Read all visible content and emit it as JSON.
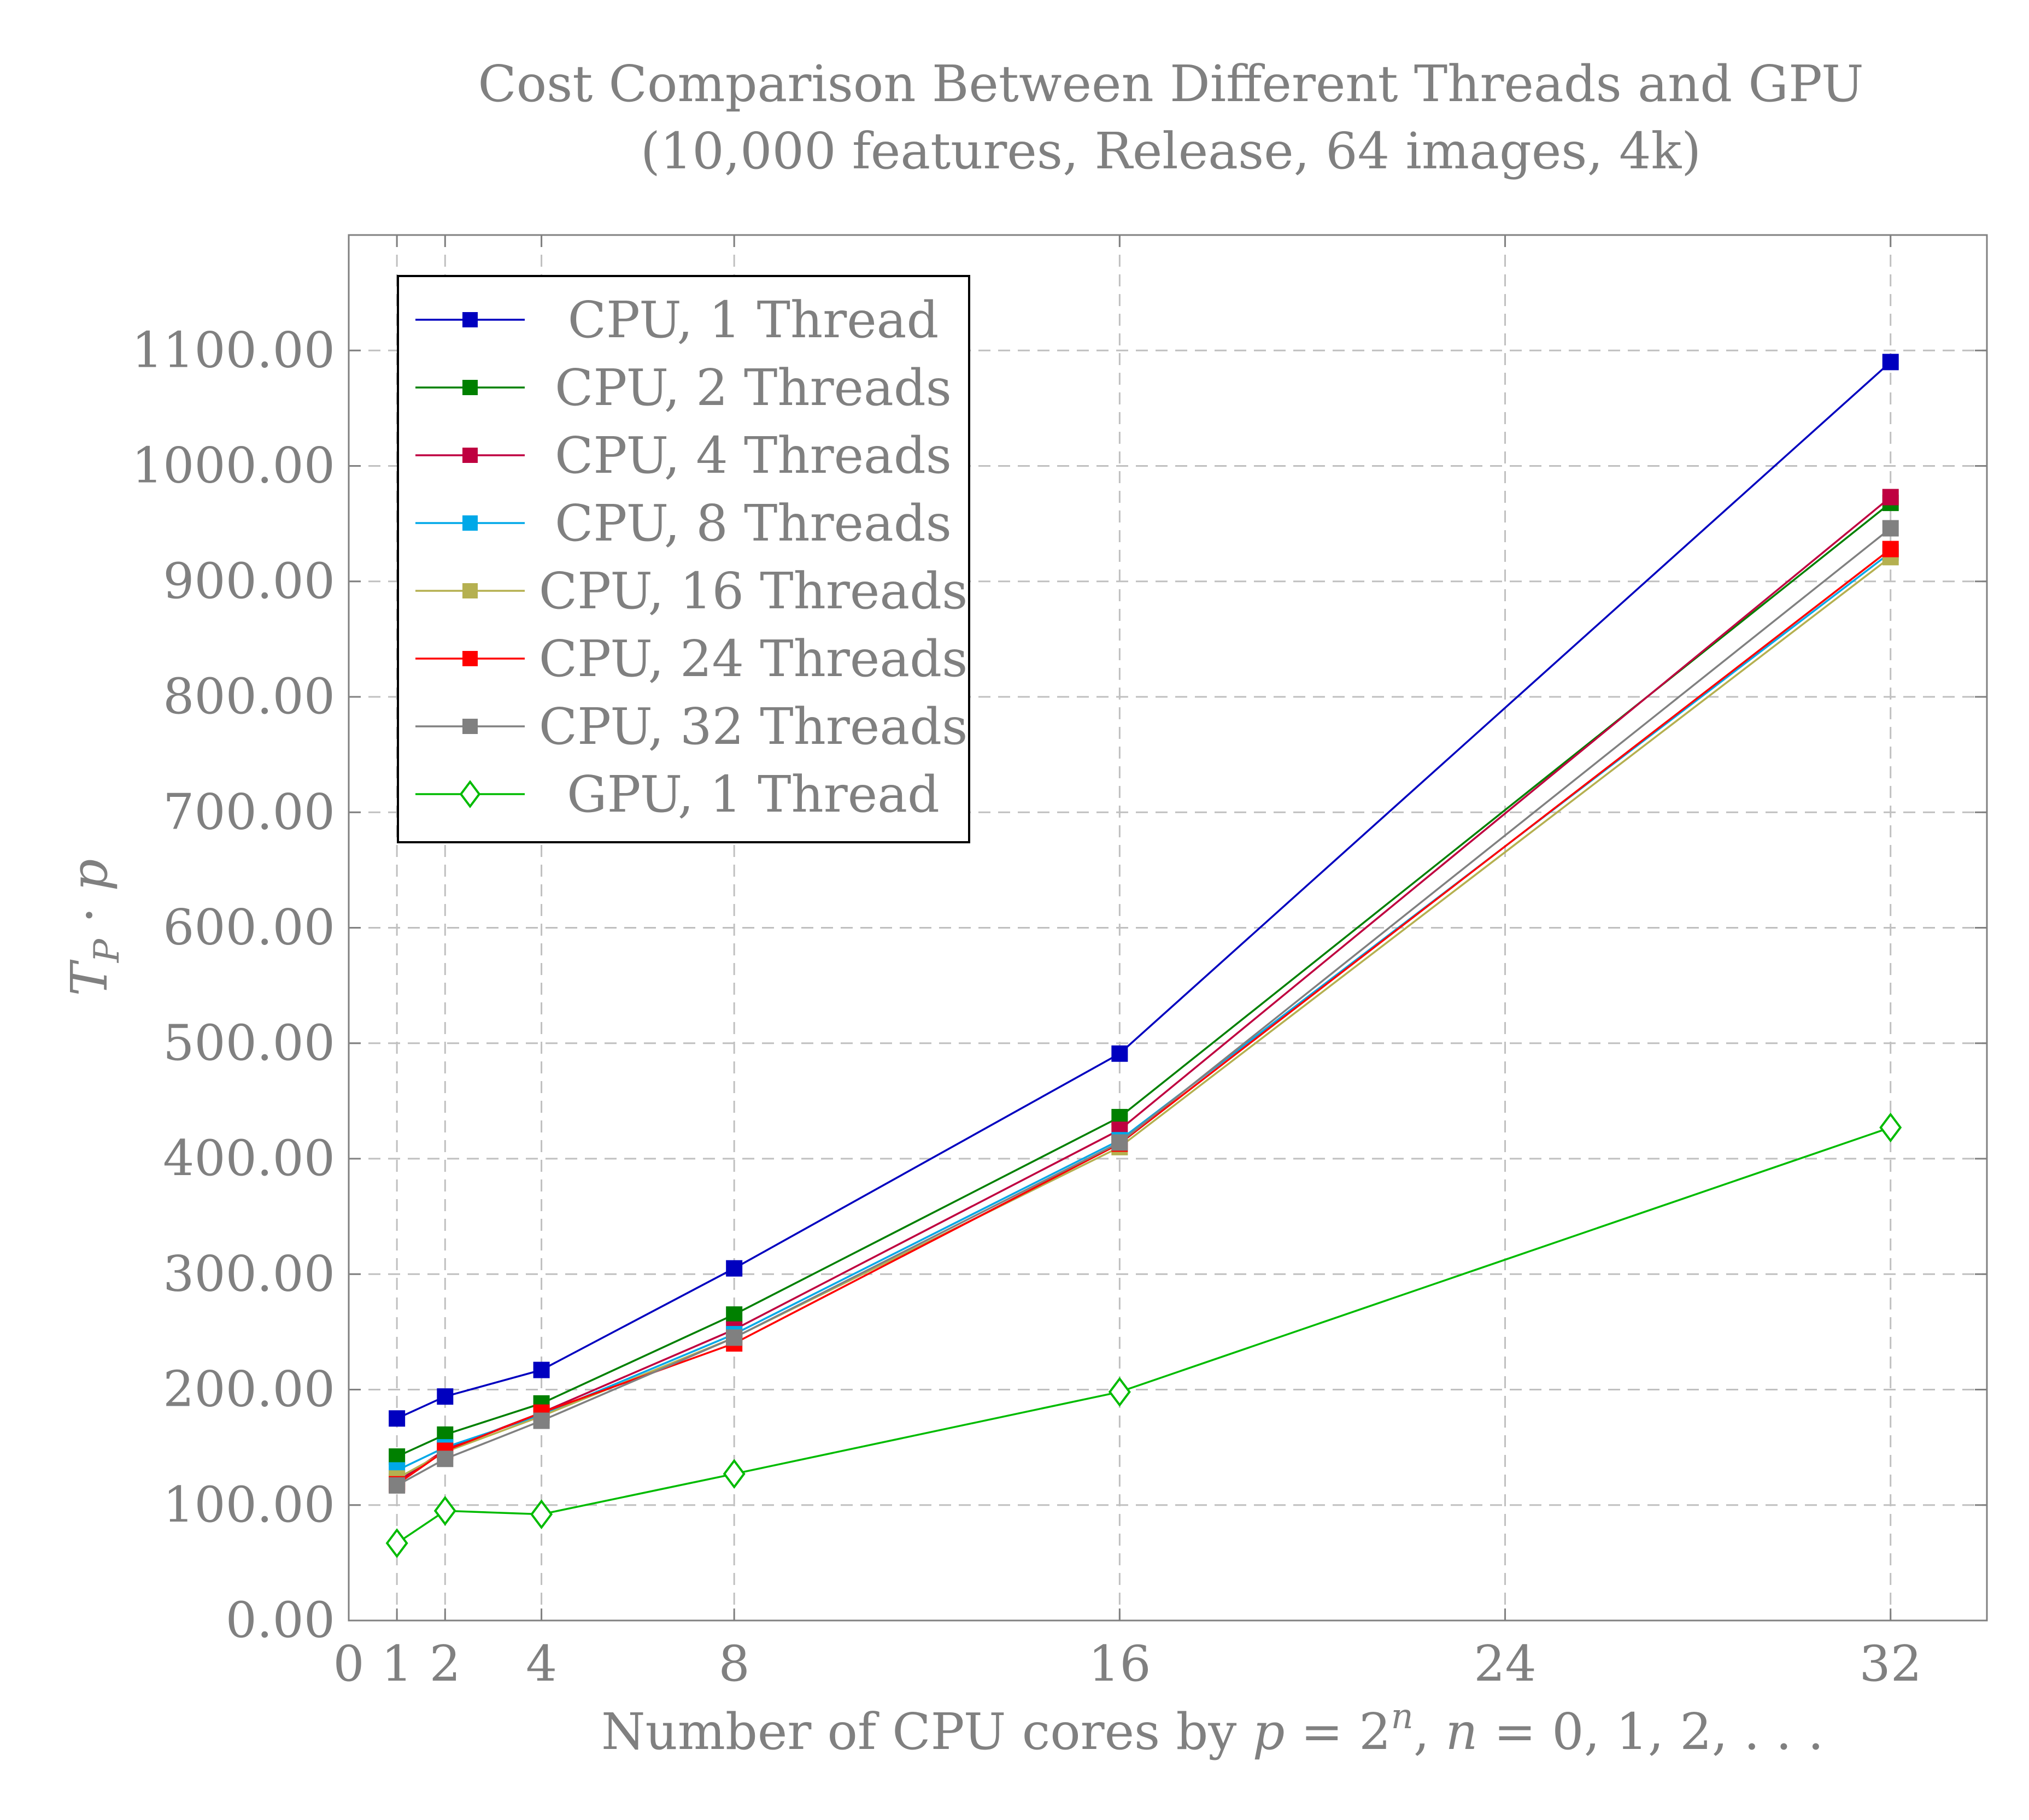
{
  "chart_data": {
    "type": "line",
    "title": "Cost Comparison Between Different Threads and GPU",
    "subtitle": "(10,000 features, Release, 64 images, 4k)",
    "xlabel": "Number of CPU cores by p = 2ⁿ, n = 0, 1, 2, ...",
    "ylabel": "T_P · p",
    "x": [
      1,
      2,
      4,
      8,
      16,
      32
    ],
    "xlim": [
      0,
      34
    ],
    "ylim": [
      0,
      1200
    ],
    "xticks": [
      0,
      1,
      2,
      4,
      8,
      16,
      24,
      32
    ],
    "xtick_labels": [
      "0",
      "1",
      "2",
      "4",
      "8",
      "16",
      "24",
      "32"
    ],
    "yticks": [
      0,
      100,
      200,
      300,
      400,
      500,
      600,
      700,
      800,
      900,
      1000,
      1100
    ],
    "ytick_labels": [
      "0.00",
      "100.00",
      "200.00",
      "300.00",
      "400.00",
      "500.00",
      "600.00",
      "700.00",
      "800.00",
      "900.00",
      "1000.00",
      "1100.00"
    ],
    "grid": true,
    "legend_position": "top-left",
    "series": [
      {
        "name": "CPU, 1 Thread",
        "color": "#0000bf",
        "marker": "square",
        "values": [
          175,
          194,
          217,
          305,
          491,
          1090
        ]
      },
      {
        "name": "CPU, 2 Threads",
        "color": "#008000",
        "marker": "square",
        "values": [
          142,
          161,
          188,
          265,
          436,
          968
        ]
      },
      {
        "name": "CPU, 4 Threads",
        "color": "#bf0040",
        "marker": "square",
        "values": [
          120,
          148,
          180,
          252,
          425,
          973
        ]
      },
      {
        "name": "CPU, 8 Threads",
        "color": "#00a8e8",
        "marker": "square",
        "values": [
          130,
          150,
          178,
          248,
          416,
          925
        ]
      },
      {
        "name": "CPU, 16 Threads",
        "color": "#b5b050",
        "marker": "square",
        "values": [
          123,
          146,
          177,
          245,
          410,
          921
        ]
      },
      {
        "name": "CPU, 24 Threads",
        "color": "#ff0000",
        "marker": "square",
        "values": [
          118,
          147,
          180,
          240,
          413,
          928
        ]
      },
      {
        "name": "CPU, 32 Threads",
        "color": "#808080",
        "marker": "square",
        "values": [
          117,
          140,
          173,
          245,
          414,
          946
        ]
      },
      {
        "name": "GPU, 1 Thread",
        "color": "#00bb00",
        "marker": "diamond",
        "values": [
          67,
          95,
          92,
          127,
          198,
          427
        ]
      }
    ]
  }
}
